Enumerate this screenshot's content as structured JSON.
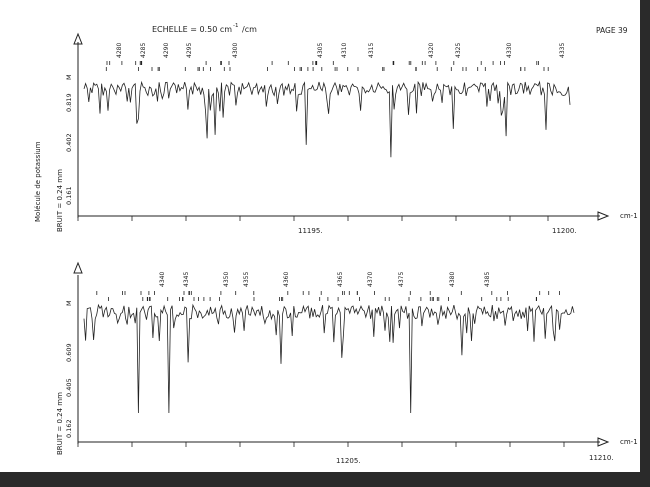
{
  "header": {
    "scale_label": "ECHELLE = 0.50 cm",
    "scale_exp": "-1",
    "scale_unit": "/cm",
    "page_label": "PAGE 39"
  },
  "molecule_label": "Molécule de potassium",
  "chart_data": [
    {
      "type": "line",
      "title": "",
      "xlabel": "cm-1",
      "xunit": "cm-1",
      "x_ticks": [
        "11195.",
        "11200."
      ],
      "ylabel": "BRUIT = 0.24 mm",
      "y_ticks": [
        "0.819",
        "0.402",
        "0.161"
      ],
      "y_marker": "M",
      "line_assignments": [
        "4280",
        "4285",
        "4290",
        "4295",
        "4300",
        "4305",
        "4310",
        "4315",
        "4320",
        "4325",
        "4330",
        "4335"
      ],
      "series_color": "#222222",
      "seed": 7
    },
    {
      "type": "line",
      "title": "",
      "xlabel": "cm-1",
      "xunit": "cm-1",
      "x_ticks": [
        "11205.",
        "11210."
      ],
      "ylabel": "BRUIT = 0.24 mm",
      "y_ticks": [
        "0.609",
        "0.405",
        "0.162"
      ],
      "y_marker": "M",
      "line_assignments": [
        "4340",
        "4345",
        "4350",
        "4355",
        "4360",
        "4365",
        "4370",
        "4375",
        "4380",
        "4385"
      ],
      "series_color": "#222222",
      "seed": 19
    }
  ]
}
